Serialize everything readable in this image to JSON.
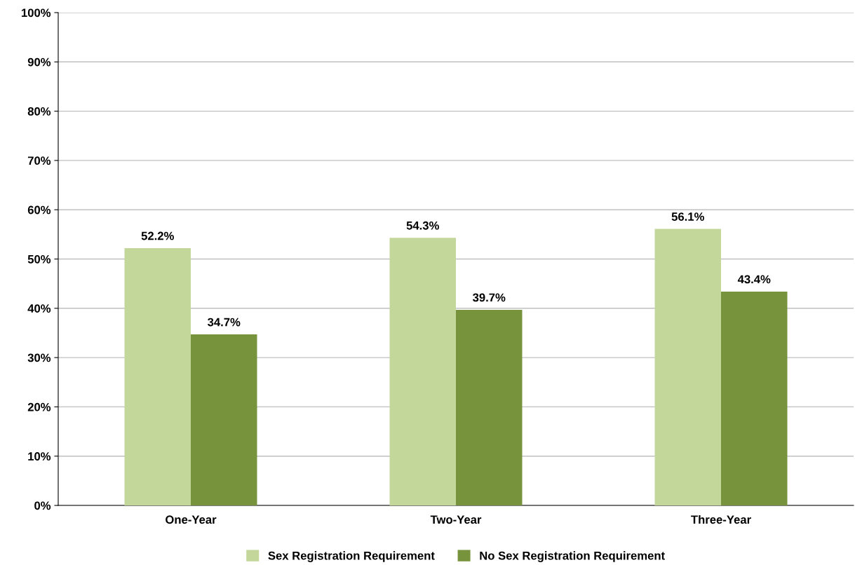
{
  "chart_data": {
    "type": "bar",
    "categories": [
      "One-Year",
      "Two-Year",
      "Three-Year"
    ],
    "series": [
      {
        "name": "Sex Registration Requirement",
        "color": "#c4d79b",
        "values": [
          52.2,
          54.3,
          56.1
        ]
      },
      {
        "name": "No Sex Registration Requirement",
        "color": "#77933c",
        "values": [
          34.7,
          39.7,
          43.4
        ]
      }
    ],
    "value_labels": [
      [
        "52.2%",
        "54.3%",
        "56.1%"
      ],
      [
        "34.7%",
        "39.7%",
        "43.4%"
      ]
    ],
    "ylim": [
      0,
      100
    ],
    "yticks": [
      {
        "value": 0,
        "label": "0%"
      },
      {
        "value": 10,
        "label": "10%"
      },
      {
        "value": 20,
        "label": "20%"
      },
      {
        "value": 30,
        "label": "30%"
      },
      {
        "value": 40,
        "label": "40%"
      },
      {
        "value": 50,
        "label": "50%"
      },
      {
        "value": 60,
        "label": "60%"
      },
      {
        "value": 70,
        "label": "70%"
      },
      {
        "value": 80,
        "label": "80%"
      },
      {
        "value": 90,
        "label": "90%"
      },
      {
        "value": 100,
        "label": "100%"
      }
    ],
    "grid": "y",
    "legend": "bottom"
  }
}
